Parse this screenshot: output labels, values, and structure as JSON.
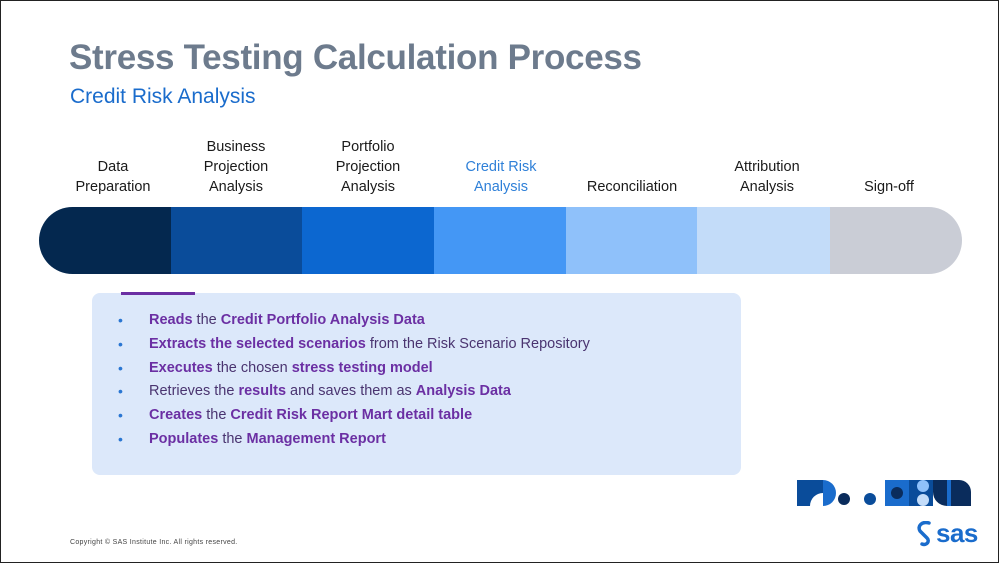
{
  "slide": {
    "title": "Stress Testing Calculation Process",
    "subtitle": "Credit Risk Analysis",
    "copyright": "Copyright © SAS Institute Inc. All rights reserved.",
    "brand": "sas"
  },
  "steps": [
    {
      "label": "Data\nPreparation",
      "color": "#04284f",
      "active": false
    },
    {
      "label": "Business\nProjection\nAnalysis",
      "color": "#0a4c9a",
      "active": false
    },
    {
      "label": "Portfolio\nProjection\nAnalysis",
      "color": "#0c67d0",
      "active": false
    },
    {
      "label": "Credit Risk\nAnalysis",
      "color": "#4497f5",
      "active": true
    },
    {
      "label": "Reconciliation",
      "color": "#8fc1fa",
      "active": false
    },
    {
      "label": "Attribution\nAnalysis",
      "color": "#c3dcf9",
      "active": false
    },
    {
      "label": "Sign-off",
      "color": "#cacdd6",
      "active": false
    }
  ],
  "details": {
    "bullets": [
      [
        {
          "t": "Reads",
          "b": true
        },
        {
          "t": " the ",
          "b": false
        },
        {
          "t": "Credit Portfolio Analysis Data",
          "b": true
        }
      ],
      [
        {
          "t": "Extracts the selected scenarios",
          "b": true
        },
        {
          "t": " from the Risk Scenario Repository",
          "b": false
        }
      ],
      [
        {
          "t": "Executes",
          "b": true
        },
        {
          "t": " the chosen ",
          "b": false
        },
        {
          "t": "stress testing model",
          "b": true
        }
      ],
      [
        {
          "t": "Retrieves the ",
          "b": false
        },
        {
          "t": "results",
          "b": true
        },
        {
          "t": " and saves them as ",
          "b": false
        },
        {
          "t": "Analysis Data",
          "b": true
        }
      ],
      [
        {
          "t": "Creates",
          "b": true
        },
        {
          "t": " the ",
          "b": false
        },
        {
          "t": "Credit Risk Report Mart detail table",
          "b": true
        }
      ],
      [
        {
          "t": "Populates",
          "b": true
        },
        {
          "t": " the ",
          "b": false
        },
        {
          "t": "Management Report",
          "b": true
        }
      ]
    ]
  },
  "colors": {
    "title": "#6d7b8d",
    "subtitle": "#1a6ccc",
    "accent_purple": "#6b2fa3",
    "panel_bg": "#dce8fa",
    "bullet_dot": "#2a76d2"
  }
}
